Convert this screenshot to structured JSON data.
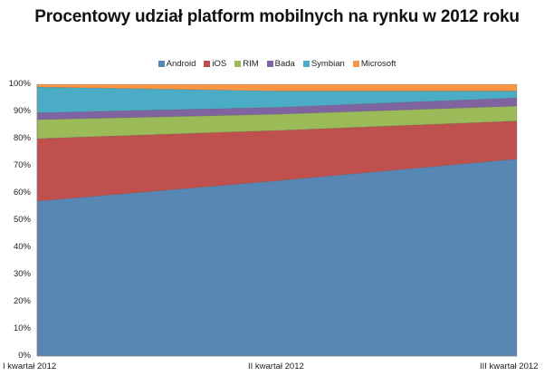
{
  "chart_data": {
    "type": "area",
    "stacked": "percent",
    "title": "Procentowy udział platform mobilnych na rynku w 2012 roku",
    "xlabel": "",
    "ylabel": "",
    "categories": [
      "I kwartał 2012",
      "II kwartał 2012",
      "III kwartał 2012"
    ],
    "series": [
      {
        "name": "Android",
        "color": "#5887b5",
        "values": [
          57,
          64.5,
          72.5
        ]
      },
      {
        "name": "iOS",
        "color": "#c0504d",
        "values": [
          23,
          18.5,
          14
        ]
      },
      {
        "name": "RIM",
        "color": "#9bbb59",
        "values": [
          7,
          6,
          5.5
        ]
      },
      {
        "name": "Bada",
        "color": "#8064a2",
        "values": [
          2.5,
          2.5,
          3
        ]
      },
      {
        "name": "Symbian",
        "color": "#4bacc6",
        "values": [
          9.5,
          6,
          2.5
        ]
      },
      {
        "name": "Microsoft",
        "color": "#f79646",
        "values": [
          1,
          2.5,
          2.5
        ]
      }
    ],
    "ylim": [
      0,
      100
    ],
    "yticks": [
      "0%",
      "10%",
      "20%",
      "30%",
      "40%",
      "50%",
      "60%",
      "70%",
      "80%",
      "90%",
      "100%"
    ],
    "grid": false,
    "legend_position": "top"
  }
}
